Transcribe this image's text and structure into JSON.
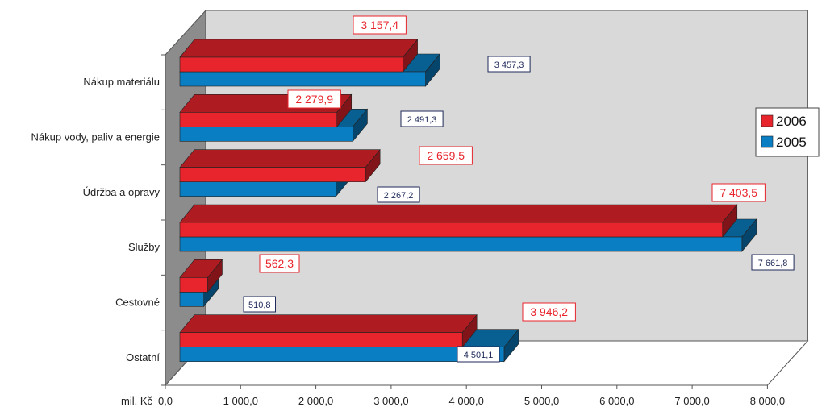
{
  "chart_data": {
    "type": "bar",
    "orientation": "horizontal",
    "three_d": true,
    "categories": [
      "Nákup materiálu",
      "Nákup vody, paliv a energie",
      "Údržba a opravy",
      "Služby",
      "Cestovné",
      "Ostatní"
    ],
    "series": [
      {
        "name": "2006",
        "color": "#e8242c",
        "values": [
          3157.4,
          2279.9,
          2659.5,
          7403.5,
          562.3,
          3946.2
        ],
        "labels": [
          "3 157,4",
          "2 279,9",
          "2 659,5",
          "7 403,5",
          "562,3",
          "3 946,2"
        ]
      },
      {
        "name": "2005",
        "color": "#0a7ec2",
        "values": [
          3457.3,
          2491.3,
          2267.2,
          7661.8,
          510.8,
          4501.1
        ],
        "labels": [
          "3 457,3",
          "2 491,3",
          "2 267,2",
          "7 661,8",
          "510,8",
          "4 501,1"
        ]
      }
    ],
    "xlabel": "mil. Kč",
    "xlim": [
      0,
      8000
    ],
    "xticks": [
      "0,0",
      "1 000,0",
      "2 000,0",
      "3 000,0",
      "4 000,0",
      "5 000,0",
      "6 000,0",
      "7 000,0",
      "8 000,0"
    ],
    "grid": false,
    "legend_position": "right",
    "background_color": "#d8d8d8",
    "side_wall_color": "#8c8c8c"
  }
}
